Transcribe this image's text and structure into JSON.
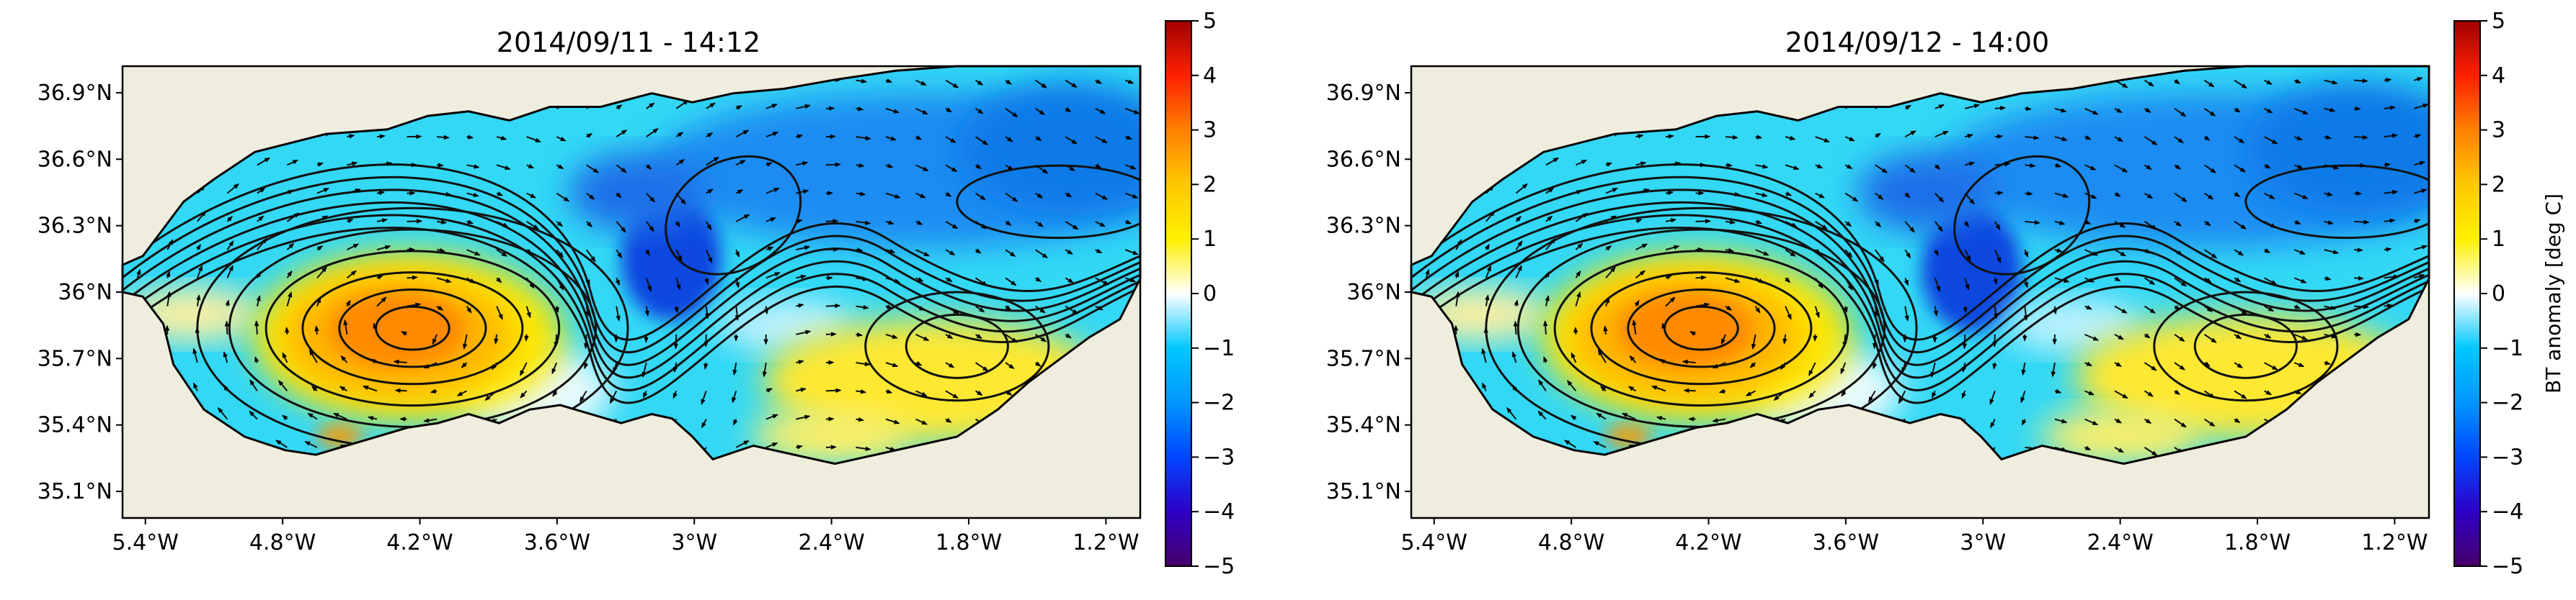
{
  "chart_data": [
    {
      "type": "heatmap",
      "title": "2014/09/11 - 14:12",
      "xlabel": "",
      "ylabel": "",
      "x_ticks": [
        "5.4°W",
        "4.8°W",
        "4.2°W",
        "3.6°W",
        "3°W",
        "2.4°W",
        "1.8°W",
        "1.2°W"
      ],
      "y_ticks": [
        "36.9°N",
        "36.6°N",
        "36.3°N",
        "36°N",
        "35.7°N",
        "35.4°N",
        "35.1°N"
      ],
      "xlim": [
        -5.5,
        -1.05
      ],
      "ylim": [
        34.98,
        37.02
      ],
      "grid": false,
      "colorbar": {
        "label": "",
        "ticks": [
          "5",
          "4",
          "3",
          "2",
          "1",
          "0",
          "−1",
          "−2",
          "−3",
          "−4",
          "−5"
        ],
        "range": [
          -5,
          5
        ]
      },
      "features": {
        "warm_anticyclone": {
          "lon": -4.25,
          "lat": 35.8,
          "peak_anomaly": 3
        },
        "eastern_warm_gyre": {
          "lon": -1.95,
          "lat": 35.6,
          "peak_anomaly": 1.2
        },
        "cold_front_core": {
          "lon": -3.1,
          "lat": 36.15,
          "peak_anomaly": -3.5
        }
      }
    },
    {
      "type": "heatmap",
      "title": "2014/09/12 - 14:00",
      "xlabel": "",
      "ylabel": "",
      "x_ticks": [
        "5.4°W",
        "4.8°W",
        "4.2°W",
        "3.6°W",
        "3°W",
        "2.4°W",
        "1.8°W",
        "1.2°W"
      ],
      "y_ticks": [
        "36.9°N",
        "36.6°N",
        "36.3°N",
        "36°N",
        "35.7°N",
        "35.4°N",
        "35.1°N"
      ],
      "xlim": [
        -5.5,
        -1.05
      ],
      "ylim": [
        34.98,
        37.02
      ],
      "grid": false,
      "colorbar": {
        "label": "BT anomaly [deg C]",
        "ticks": [
          "5",
          "4",
          "3",
          "2",
          "1",
          "0",
          "−1",
          "−2",
          "−3",
          "−4",
          "−5"
        ],
        "range": [
          -5,
          5
        ]
      },
      "features": {
        "warm_anticyclone": {
          "lon": -4.25,
          "lat": 35.8,
          "peak_anomaly": 3.2
        },
        "eastern_warm_gyre": {
          "lon": -1.85,
          "lat": 35.62,
          "peak_anomaly": 1.3
        },
        "cold_front_core": {
          "lon": -3.05,
          "lat": 36.1,
          "peak_anomaly": -3.6
        }
      }
    }
  ],
  "colors": {
    "land": "#efedde",
    "background": "#ffffff",
    "colormap": [
      "#48006a",
      "#2e00c8",
      "#0046ff",
      "#0096ff",
      "#00c8ff",
      "#ffffff",
      "#fff000",
      "#ffc800",
      "#ff8000",
      "#ff2000",
      "#a00000"
    ]
  }
}
